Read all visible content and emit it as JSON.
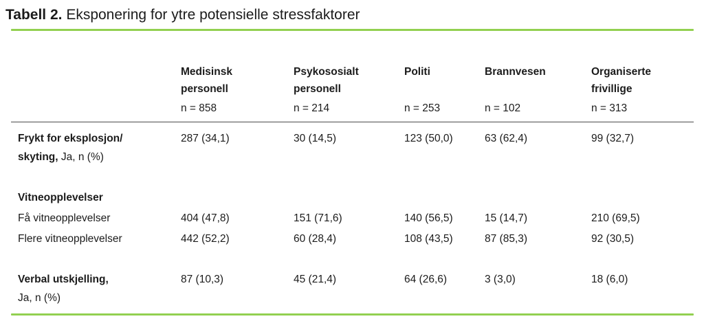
{
  "title": {
    "label": "Tabell 2.",
    "text": " Eksponering for ytre potensielle stressfaktorer"
  },
  "colors": {
    "accent_green": "#92d050",
    "header_divider": "#4a4a4a",
    "text": "#1b1b1b"
  },
  "table": {
    "columns": [
      {
        "name": "Medisinsk personell",
        "n": "n = 858"
      },
      {
        "name": "Psykososialt personell",
        "n": "n = 214"
      },
      {
        "name": "Politi",
        "n": "n = 253"
      },
      {
        "name": "Brannvesen",
        "n": "n = 102"
      },
      {
        "name": "Organiserte frivillige",
        "n": "n = 313"
      }
    ],
    "rows": {
      "frykt": {
        "bold1": "Frykt for eksplosjon/",
        "bold2": "skyting,",
        "suffix": " Ja, n (%)",
        "values": [
          "287 (34,1)",
          "30 (14,5)",
          "123 (50,0)",
          "63 (62,4)",
          "99 (32,7)"
        ]
      },
      "vitne": {
        "header": "Vitneopplevelser"
      },
      "faa": {
        "label": "Få vitneopplevelser",
        "values": [
          "404 (47,8)",
          "151 (71,6)",
          "140 (56,5)",
          "15 (14,7)",
          "210 (69,5)"
        ]
      },
      "flere": {
        "label": "Flere vitneopplevelser",
        "values": [
          "442 (52,2)",
          "60 (28,4)",
          "108 (43,5)",
          "87 (85,3)",
          "92 (30,5)"
        ]
      },
      "verbal": {
        "bold": "Verbal utskjelling,",
        "suffix": "Ja, n (%)",
        "values": [
          "87 (10,3)",
          "45 (21,4)",
          "64 (26,6)",
          "3 (3,0)",
          "18 (6,0)"
        ]
      }
    }
  }
}
